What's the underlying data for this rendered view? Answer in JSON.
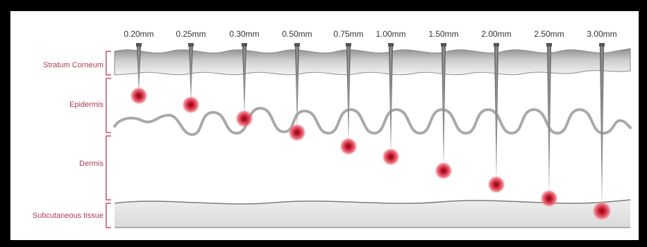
{
  "diagram": {
    "depth_labels": [
      "0.20mm",
      "0.25mm",
      "0.30mm",
      "0.50mm",
      "0.75mm",
      "1.00mm",
      "1.50mm",
      "2.00mm",
      "2.50mm",
      "3.00mm"
    ],
    "layers": [
      {
        "name": "Stratum Corneum"
      },
      {
        "name": "Epidermis"
      },
      {
        "name": "Dermis"
      },
      {
        "name": "Subcutaneous tissue"
      }
    ],
    "colors": {
      "bracket": "#c0546a",
      "layer_text": "#b03a52",
      "needle": "#6f6f6f",
      "dot": "#d01f34",
      "wave": "#a9a9a9"
    }
  }
}
